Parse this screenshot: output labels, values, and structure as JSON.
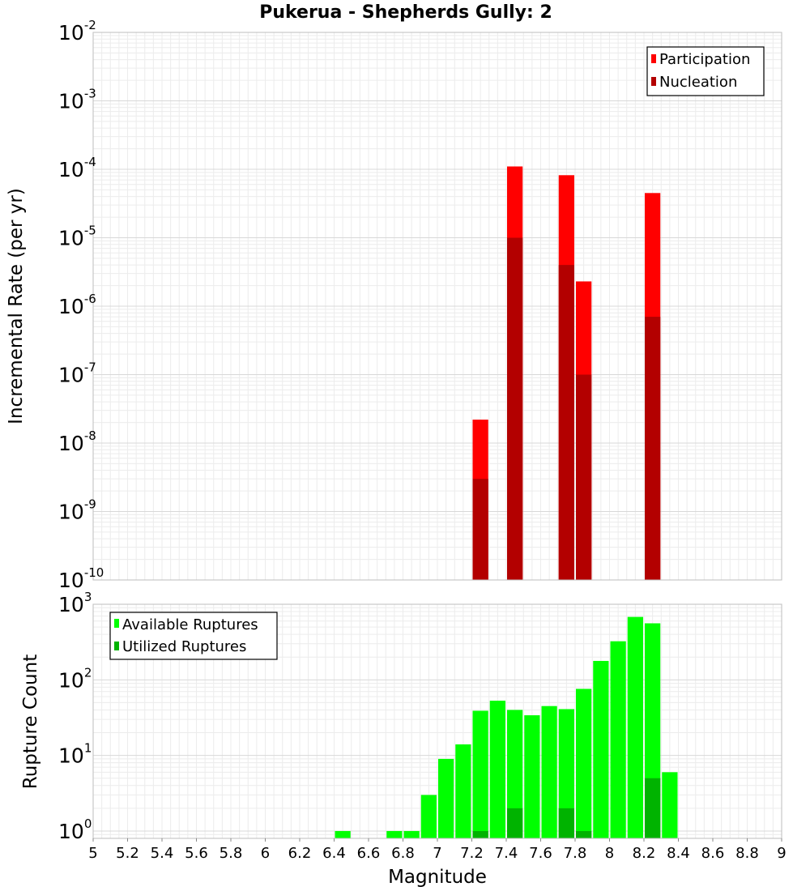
{
  "chart_data": [
    {
      "type": "bar",
      "title": "Pukerua - Shepherds Gully: 2",
      "xlabel": "Magnitude",
      "ylabel": "Incremental Rate (per yr)",
      "yscale": "log",
      "xlim": [
        5,
        9
      ],
      "ylim": [
        1e-10,
        0.01
      ],
      "ytick_exponents": [
        "-2",
        "-3",
        "-4",
        "-5",
        "-6",
        "-7",
        "-8",
        "-9",
        "-10"
      ],
      "legend_position": "top-right",
      "series": [
        {
          "name": "Participation",
          "color": "#ff0000",
          "x": [
            7.25,
            7.45,
            7.75,
            7.85,
            8.25
          ],
          "values": [
            2.2e-08,
            0.00011,
            8.2e-05,
            2.3e-06,
            4.5e-05
          ]
        },
        {
          "name": "Nucleation",
          "color": "#b30000",
          "x": [
            7.25,
            7.45,
            7.75,
            7.85,
            8.25
          ],
          "values": [
            3e-09,
            1e-05,
            4e-06,
            1e-07,
            7e-07
          ]
        }
      ]
    },
    {
      "type": "bar",
      "xlabel": "Magnitude",
      "ylabel": "Rupture Count",
      "yscale": "log",
      "xlim": [
        5,
        9
      ],
      "ylim": [
        0.8,
        1000
      ],
      "ytick_exponents": [
        "3",
        "2",
        "1",
        "0"
      ],
      "legend_position": "top-left",
      "series": [
        {
          "name": "Available Ruptures",
          "color": "#00ff00",
          "x": [
            6.45,
            6.75,
            6.85,
            6.95,
            7.05,
            7.15,
            7.25,
            7.35,
            7.45,
            7.55,
            7.65,
            7.75,
            7.85,
            7.95,
            8.05,
            8.15,
            8.25,
            8.35
          ],
          "values": [
            1,
            1,
            1,
            3,
            9,
            14,
            39,
            53,
            40,
            34,
            45,
            41,
            76,
            178,
            324,
            680,
            560,
            6
          ]
        },
        {
          "name": "Utilized Ruptures",
          "color": "#00b300",
          "x": [
            7.25,
            7.45,
            7.75,
            7.85,
            8.25
          ],
          "values": [
            1,
            2,
            2,
            1,
            5
          ]
        }
      ]
    }
  ],
  "x_tick_labels": [
    "5",
    "5.2",
    "5.4",
    "5.6",
    "5.8",
    "6",
    "6.2",
    "6.4",
    "6.6",
    "6.8",
    "7",
    "7.2",
    "7.4",
    "7.6",
    "7.8",
    "8",
    "8.2",
    "8.4",
    "8.6",
    "8.8",
    "9"
  ],
  "ytick_base": "10"
}
